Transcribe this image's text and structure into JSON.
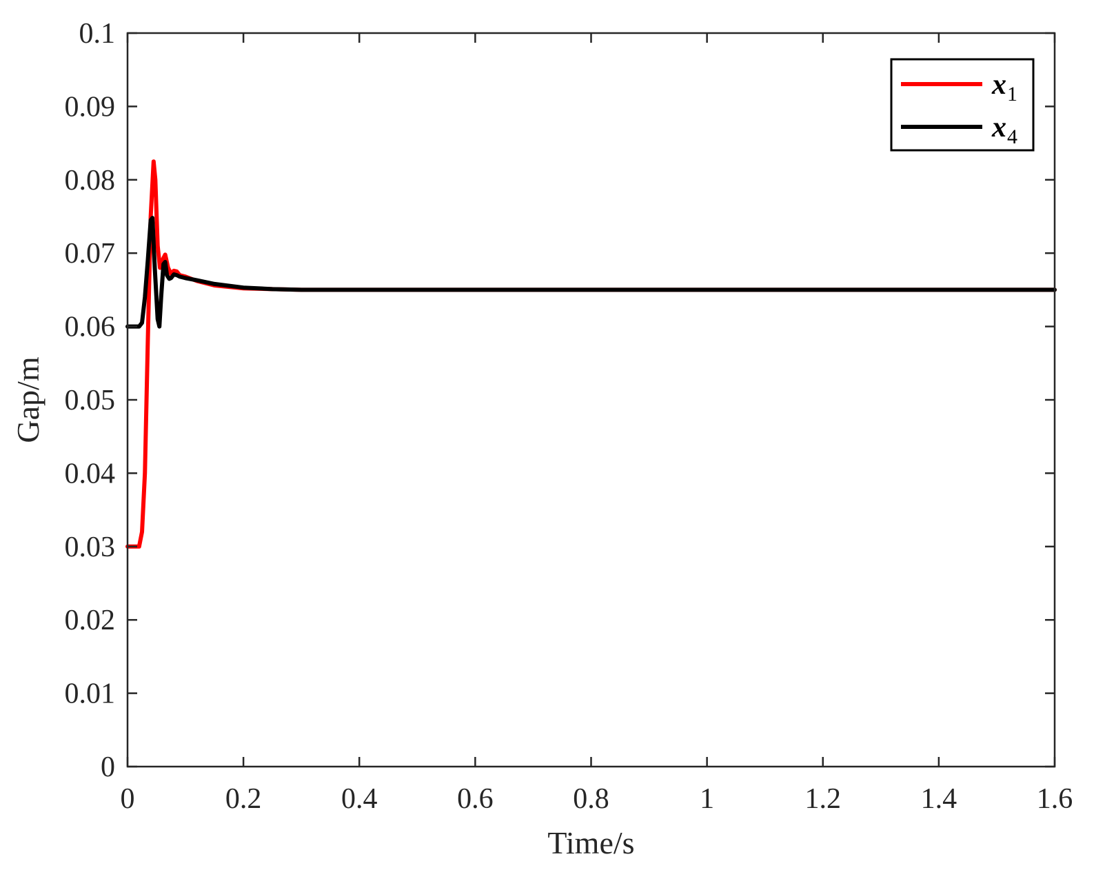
{
  "chart_data": {
    "type": "line",
    "title": "",
    "xlabel": "Time/s",
    "ylabel": "Gap/m",
    "xlim": [
      0,
      1.6
    ],
    "ylim": [
      0,
      0.1
    ],
    "x_ticks": [
      0,
      0.2,
      0.4,
      0.6,
      0.8,
      1.0,
      1.2,
      1.4,
      1.6
    ],
    "x_tick_labels": [
      "0",
      "0.2",
      "0.4",
      "0.6",
      "0.8",
      "1",
      "1.2",
      "1.4",
      "1.6"
    ],
    "y_ticks": [
      0,
      0.01,
      0.02,
      0.03,
      0.04,
      0.05,
      0.06,
      0.07,
      0.08,
      0.09,
      0.1
    ],
    "y_tick_labels": [
      "0",
      "0.01",
      "0.02",
      "0.03",
      "0.04",
      "0.05",
      "0.06",
      "0.07",
      "0.08",
      "0.09",
      "0.1"
    ],
    "grid": false,
    "legend_position": "top-right",
    "series": [
      {
        "name": "x",
        "name_sub": "1",
        "color": "#ff0000",
        "x": [
          0,
          0.02,
          0.025,
          0.03,
          0.035,
          0.04,
          0.045,
          0.048,
          0.052,
          0.056,
          0.06,
          0.065,
          0.07,
          0.075,
          0.08,
          0.085,
          0.09,
          0.1,
          0.12,
          0.15,
          0.2,
          0.25,
          0.3,
          0.4,
          0.6,
          0.8,
          1.0,
          1.2,
          1.4,
          1.6
        ],
        "y": [
          0.03,
          0.03,
          0.032,
          0.04,
          0.058,
          0.075,
          0.0825,
          0.08,
          0.071,
          0.068,
          0.069,
          0.0698,
          0.068,
          0.0672,
          0.0676,
          0.0675,
          0.067,
          0.0668,
          0.0662,
          0.0656,
          0.0652,
          0.0651,
          0.065,
          0.065,
          0.065,
          0.065,
          0.065,
          0.065,
          0.065,
          0.065
        ]
      },
      {
        "name": "x",
        "name_sub": "4",
        "color": "#000000",
        "x": [
          0,
          0.02,
          0.025,
          0.03,
          0.035,
          0.04,
          0.043,
          0.047,
          0.052,
          0.055,
          0.058,
          0.062,
          0.065,
          0.068,
          0.072,
          0.075,
          0.08,
          0.085,
          0.09,
          0.1,
          0.12,
          0.15,
          0.2,
          0.25,
          0.3,
          0.4,
          0.6,
          0.8,
          1.0,
          1.2,
          1.4,
          1.6
        ],
        "y": [
          0.06,
          0.06,
          0.0605,
          0.064,
          0.069,
          0.0745,
          0.0748,
          0.068,
          0.061,
          0.06,
          0.064,
          0.0685,
          0.0688,
          0.067,
          0.0665,
          0.0666,
          0.0671,
          0.067,
          0.0668,
          0.0666,
          0.0663,
          0.0658,
          0.0653,
          0.0651,
          0.065,
          0.065,
          0.065,
          0.065,
          0.065,
          0.065,
          0.065,
          0.065
        ]
      }
    ]
  }
}
